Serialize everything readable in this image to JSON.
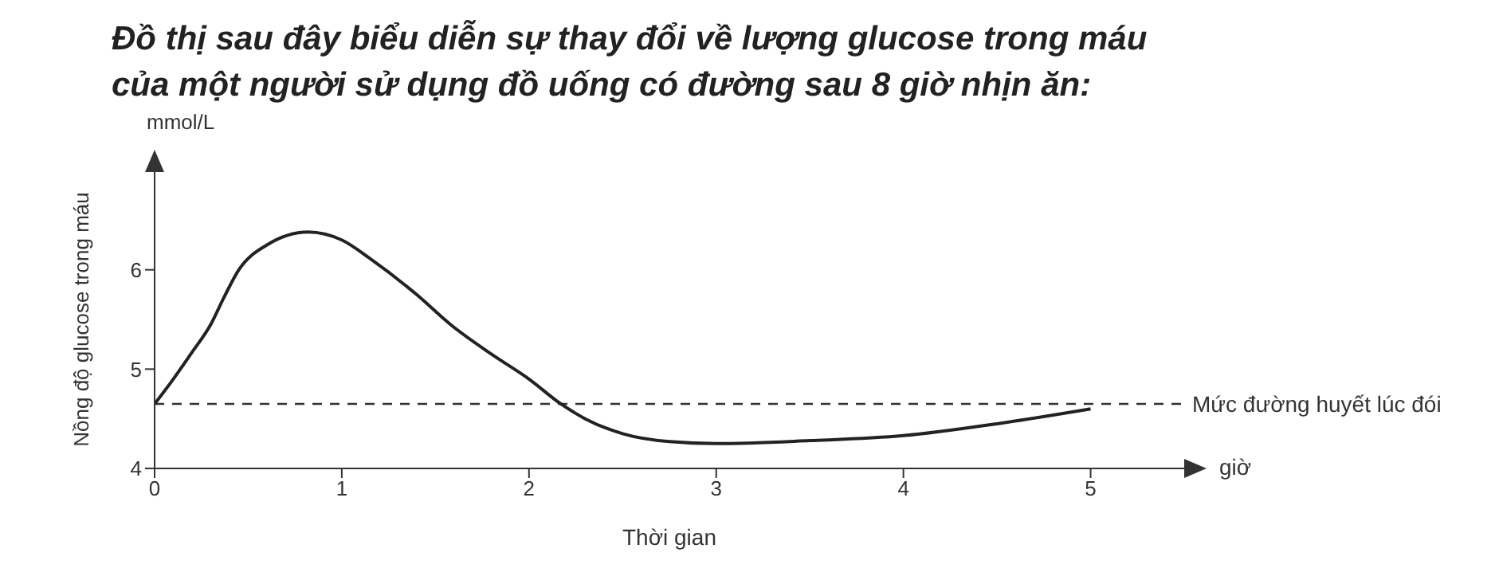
{
  "chart_data": {
    "type": "line",
    "title": "Đồ thị sau đây biểu diễn sự thay đổi về lượng glucose trong máu\ncủa một người sử dụng đồ uống có đường sau 8 giờ nhịn ăn:",
    "xlabel": "Thời gian",
    "ylabel": "Nồng độ glucose trong máu",
    "annotations": [
      "mmol/L",
      "giờ"
    ],
    "x": [
      0,
      0.1,
      0.2,
      0.3,
      0.37,
      0.45,
      0.6,
      0.82,
      1.0,
      1.16,
      1.4,
      1.58,
      1.8,
      2.0,
      2.17,
      2.3,
      2.5,
      2.75,
      3.0,
      3.5,
      4.0,
      4.5,
      5.0
    ],
    "series": [
      {
        "color": "#222222",
        "values": [
          4.65,
          4.9,
          5.17,
          5.45,
          5.72,
          6.0,
          6.25,
          6.38,
          6.3,
          6.1,
          5.75,
          5.45,
          5.15,
          4.9,
          4.65,
          4.5,
          4.35,
          4.27,
          4.25,
          4.28,
          4.33,
          4.45,
          4.6
        ]
      }
    ],
    "xlim": [
      0,
      5.5
    ],
    "xticks": [
      0,
      1,
      2,
      3,
      4,
      5
    ],
    "ylim": [
      4,
      7
    ],
    "yticks": [
      4,
      5,
      6
    ],
    "ref_lines": [
      {
        "axis": "y",
        "value": 4.65,
        "label": "Mức đường huyết lúc đói",
        "line_style": "dashed",
        "color": "#333333"
      }
    ]
  }
}
